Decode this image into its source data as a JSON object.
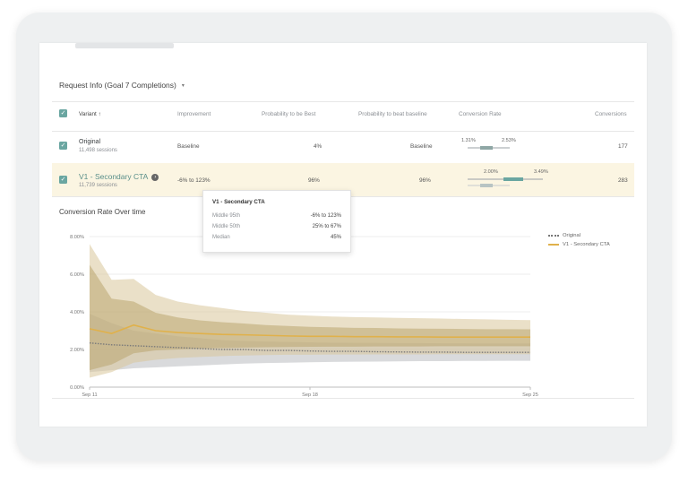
{
  "selector": {
    "label": "Request Info (Goal 7 Completions)",
    "caret": "▾"
  },
  "table": {
    "headers": {
      "variant": "Variant",
      "sort_icon": "↑",
      "improvement": "Improvement",
      "prob_best": "Probability to be Best",
      "prob_beat": "Probability to beat baseline",
      "conversion_rate": "Conversion Rate",
      "conversions": "Conversions"
    },
    "rows": [
      {
        "name": "Original",
        "sessions": "11,498 sessions",
        "improvement": "Baseline",
        "prob_best": "4%",
        "prob_beat": "Baseline",
        "cr_low": "1.31%",
        "cr_high": "2.53%",
        "conversions": "177"
      },
      {
        "name": "V1 - Secondary CTA",
        "sessions": "11,739 sessions",
        "improvement": "-6% to 123%",
        "prob_best": "96%",
        "prob_beat": "96%",
        "cr_low": "2.00%",
        "cr_high": "3.49%",
        "conversions": "283"
      }
    ]
  },
  "tooltip": {
    "title": "V1 - Secondary CTA",
    "rows": [
      {
        "key": "Middle 95th",
        "value": "-6% to 123%"
      },
      {
        "key": "Middle 50th",
        "value": "25% to 67%"
      },
      {
        "key": "Median",
        "value": "45%"
      }
    ]
  },
  "chart_data": {
    "type": "area",
    "title": "Conversion Rate Over time",
    "y_ticks": [
      "0.00%",
      "2.00%",
      "4.00%",
      "6.00%",
      "8.00%"
    ],
    "x_ticks": [
      "Sep 11",
      "Sep 18",
      "Sep 25"
    ],
    "ylim": [
      0,
      8
    ],
    "x": [
      0,
      1,
      2,
      3,
      4,
      5,
      6,
      7,
      8,
      9,
      10,
      11,
      12,
      13,
      14,
      15,
      16,
      17,
      18,
      19,
      20
    ],
    "series": [
      {
        "name": "Original",
        "color": "#7a7a7a",
        "values": [
          2.35,
          2.25,
          2.2,
          2.15,
          2.1,
          2.05,
          2.0,
          2.0,
          1.95,
          1.95,
          1.92,
          1.9,
          1.9,
          1.88,
          1.87,
          1.86,
          1.86,
          1.85,
          1.85,
          1.85,
          1.85
        ],
        "upper": [
          3.9,
          3.4,
          3.0,
          2.85,
          2.7,
          2.6,
          2.5,
          2.45,
          2.42,
          2.4,
          2.38,
          2.36,
          2.35,
          2.35,
          2.34,
          2.34,
          2.33,
          2.33,
          2.32,
          2.32,
          2.32
        ],
        "lower": [
          0.8,
          0.9,
          1.0,
          1.05,
          1.1,
          1.15,
          1.2,
          1.25,
          1.28,
          1.3,
          1.32,
          1.34,
          1.35,
          1.36,
          1.37,
          1.38,
          1.38,
          1.39,
          1.39,
          1.4,
          1.4
        ]
      },
      {
        "name": "V1 - Secondary CTA",
        "color": "#e0b14b",
        "values": [
          3.1,
          2.85,
          3.3,
          3.0,
          2.9,
          2.85,
          2.8,
          2.78,
          2.75,
          2.72,
          2.7,
          2.7,
          2.68,
          2.68,
          2.67,
          2.67,
          2.66,
          2.66,
          2.66,
          2.66,
          2.66
        ],
        "upper": [
          7.6,
          5.7,
          5.75,
          4.9,
          4.55,
          4.35,
          4.2,
          4.05,
          3.95,
          3.85,
          3.8,
          3.75,
          3.72,
          3.7,
          3.68,
          3.66,
          3.64,
          3.62,
          3.6,
          3.58,
          3.56
        ],
        "lower": [
          0.5,
          0.8,
          1.3,
          1.45,
          1.55,
          1.6,
          1.65,
          1.68,
          1.7,
          1.72,
          1.72,
          1.73,
          1.73,
          1.74,
          1.74,
          1.74,
          1.75,
          1.75,
          1.75,
          1.75,
          1.75
        ],
        "inner_upper": [
          6.5,
          4.7,
          4.55,
          3.95,
          3.7,
          3.55,
          3.45,
          3.38,
          3.3,
          3.25,
          3.2,
          3.18,
          3.15,
          3.14,
          3.12,
          3.11,
          3.1,
          3.09,
          3.08,
          3.08,
          3.07
        ],
        "inner_lower": [
          0.9,
          1.2,
          1.8,
          1.95,
          2.0,
          2.05,
          2.08,
          2.1,
          2.12,
          2.13,
          2.14,
          2.15,
          2.15,
          2.16,
          2.16,
          2.16,
          2.17,
          2.17,
          2.17,
          2.17,
          2.17
        ]
      }
    ],
    "legend_placement": "right",
    "grid": true
  }
}
